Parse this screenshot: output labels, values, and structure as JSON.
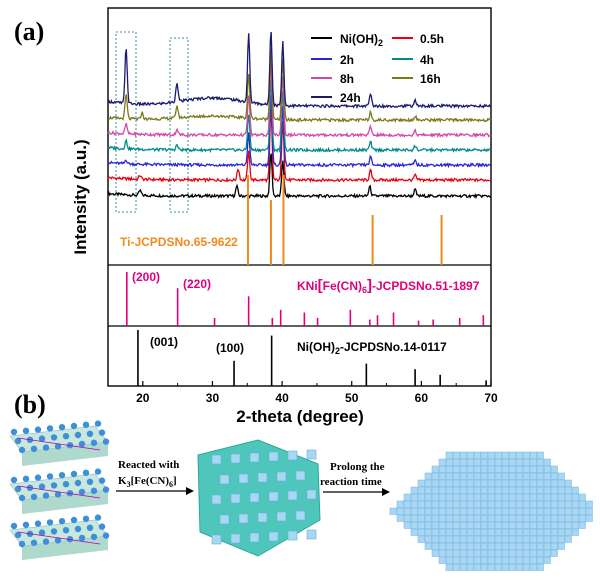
{
  "panel_a": {
    "label": "(a)",
    "chart_data": {
      "type": "line",
      "xlabel": "2-theta (degree)",
      "ylabel": "Intensity (a.u.)",
      "xlim": [
        15,
        70
      ],
      "x_ticks": [
        "20",
        "30",
        "40",
        "50",
        "60",
        "70"
      ],
      "legend": {
        "placement": "top-right",
        "columns": 2
      },
      "series": [
        {
          "name": "Ni(OH)2",
          "color": "#000000",
          "peaks": [
            [
              19.6,
              0.06
            ],
            [
              33.5,
              0.12
            ],
            [
              38.4,
              0.55
            ],
            [
              40.1,
              0.45
            ],
            [
              52.6,
              0.12
            ],
            [
              59.1,
              0.08
            ]
          ]
        },
        {
          "name": "0.5h",
          "color": "#e8000b",
          "peaks": [
            [
              19.6,
              0.05
            ],
            [
              33.7,
              0.14
            ],
            [
              35.2,
              0.35
            ],
            [
              38.4,
              0.9
            ],
            [
              40.1,
              0.75
            ],
            [
              52.7,
              0.12
            ],
            [
              59.1,
              0.06
            ]
          ]
        },
        {
          "name": "2h",
          "color": "#2828d0",
          "peaks": [
            [
              17.6,
              0.05
            ],
            [
              35.2,
              0.4
            ],
            [
              38.4,
              0.9
            ],
            [
              40.1,
              0.75
            ],
            [
              52.7,
              0.1
            ],
            [
              59.1,
              0.05
            ]
          ]
        },
        {
          "name": "4h",
          "color": "#008b8b",
          "peaks": [
            [
              17.6,
              0.1
            ],
            [
              24.9,
              0.06
            ],
            [
              35.2,
              0.45
            ],
            [
              38.4,
              0.9
            ],
            [
              40.1,
              0.75
            ],
            [
              52.7,
              0.1
            ],
            [
              59.1,
              0.05
            ]
          ]
        },
        {
          "name": "8h",
          "color": "#d04aa8",
          "peaks": [
            [
              17.6,
              0.12
            ],
            [
              24.9,
              0.07
            ],
            [
              35.2,
              0.5
            ],
            [
              38.4,
              0.9
            ],
            [
              40.1,
              0.75
            ],
            [
              52.7,
              0.1
            ],
            [
              59.1,
              0.05
            ]
          ]
        },
        {
          "name": "16h",
          "color": "#7a7a1a",
          "peaks": [
            [
              17.6,
              0.3
            ],
            [
              19.9,
              0.08
            ],
            [
              24.9,
              0.15
            ],
            [
              35.2,
              0.55
            ],
            [
              38.4,
              0.9
            ],
            [
              40.1,
              0.75
            ],
            [
              52.7,
              0.1
            ],
            [
              59.1,
              0.05
            ]
          ]
        },
        {
          "name": "24h",
          "color": "#1a1a70",
          "peaks": [
            [
              17.6,
              0.7
            ],
            [
              24.9,
              0.25
            ],
            [
              35.2,
              0.85
            ],
            [
              38.4,
              0.95
            ],
            [
              40.1,
              0.8
            ],
            [
              52.7,
              0.15
            ],
            [
              59.1,
              0.07
            ]
          ]
        }
      ],
      "references": [
        {
          "name": "Ti-JCPDSNo.65-9622",
          "color": "#f08a1c",
          "lines": [
            [
              35.1,
              0.9
            ],
            [
              38.4,
              0.65
            ],
            [
              40.2,
              0.9
            ],
            [
              53.0,
              0.5
            ],
            [
              62.9,
              0.5
            ]
          ]
        },
        {
          "name": "KNi[Fe(CN)6]-JCPDSNo.51-1897",
          "color": "#e0007a",
          "annotations": [
            "(200)",
            "(220)"
          ],
          "lines": [
            [
              17.7,
              1.0
            ],
            [
              25.0,
              0.7
            ],
            [
              30.3,
              0.15
            ],
            [
              35.2,
              0.55
            ],
            [
              38.6,
              0.15
            ],
            [
              39.8,
              0.3
            ],
            [
              43.2,
              0.25
            ],
            [
              45.1,
              0.15
            ],
            [
              49.8,
              0.3
            ],
            [
              52.6,
              0.12
            ],
            [
              53.7,
              0.2
            ],
            [
              56.0,
              0.25
            ],
            [
              59.6,
              0.1
            ],
            [
              61.7,
              0.12
            ],
            [
              65.5,
              0.15
            ],
            [
              68.9,
              0.2
            ]
          ]
        },
        {
          "name": "Ni(OH)2-JCPDSNo.14-0117",
          "color": "#000000",
          "annotations": [
            "(001)",
            "(100)"
          ],
          "lines": [
            [
              19.3,
              1.0
            ],
            [
              33.1,
              0.45
            ],
            [
              38.5,
              0.9
            ],
            [
              52.1,
              0.4
            ],
            [
              59.1,
              0.3
            ],
            [
              62.7,
              0.2
            ],
            [
              69.3,
              0.1
            ]
          ]
        }
      ]
    }
  },
  "panel_b": {
    "label": "(b)",
    "step1": {
      "line1": "Reacted with",
      "line2_prefix": "K",
      "sub_3": "3",
      "line2_mid": "[Fe(CN)",
      "sub_6": "6",
      "line2_suffix": "]"
    },
    "step2": {
      "line1": "Prolong the",
      "line2": "reaction time"
    }
  },
  "legend_labels": {
    "ni_oh_2_prefix": "Ni(OH)",
    "ni_oh_2_sub": "2"
  },
  "ref_labels": {
    "ti": "Ti-JCPDSNo.65-9622",
    "kni_prefix": "KNi",
    "kni_bracket_open": "[",
    "kni_mid": "Fe(CN)",
    "kni_sub": "6",
    "kni_bracket_close": "]",
    "kni_suffix": "-JCPDSNo.51-1897",
    "ni_prefix": "Ni(OH)",
    "ni_sub": "2",
    "ni_suffix": "-JCPDSNo.14-0117",
    "hkl_200": "(200)",
    "hkl_220": "(220)",
    "hkl_001": "(001)",
    "hkl_100": "(100)"
  }
}
